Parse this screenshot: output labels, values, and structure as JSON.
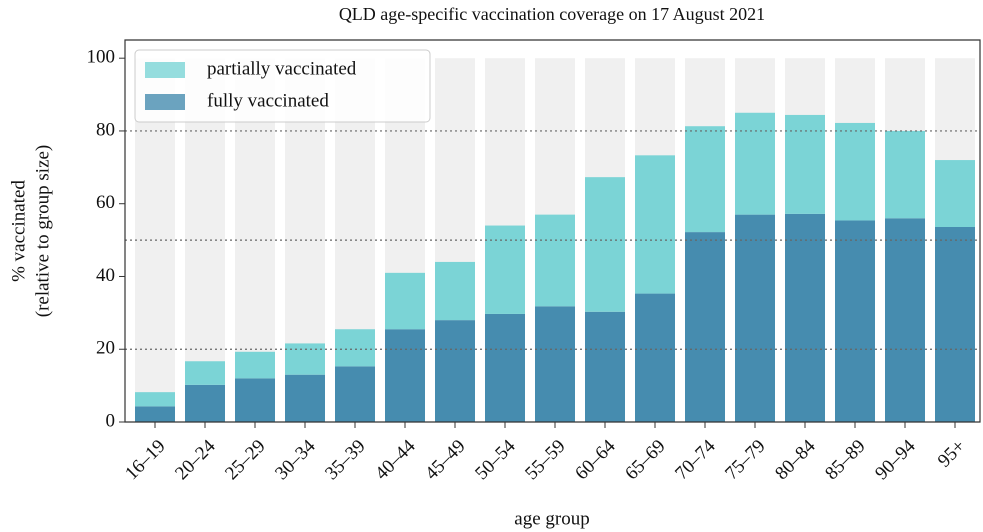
{
  "chart_data": {
    "type": "stacked_bar",
    "title": "QLD age-specific vaccination coverage on 17 August 2021",
    "x_label": "age group",
    "y_label": [
      "% vaccinated",
      "(relative to group size)"
    ],
    "categories": [
      "16–19",
      "20–24",
      "25–29",
      "30–34",
      "35–39",
      "40–44",
      "45–49",
      "50–54",
      "55–59",
      "60–64",
      "65–69",
      "70–74",
      "75–79",
      "80–84",
      "85–89",
      "90–94",
      "95+"
    ],
    "series": [
      {
        "name": "fully vaccinated",
        "color": "#468caf",
        "values": [
          4.3,
          10.2,
          12.0,
          13.0,
          15.3,
          25.5,
          28.0,
          29.7,
          31.8,
          30.3,
          35.3,
          52.2,
          57.0,
          57.2,
          55.4,
          56.0,
          53.6
        ]
      },
      {
        "name": "partially vaccinated",
        "color": "#7bd4d6",
        "values": [
          3.9,
          6.5,
          7.3,
          8.6,
          10.2,
          15.5,
          16.0,
          24.3,
          25.2,
          37.0,
          38.0,
          29.1,
          28.0,
          27.2,
          26.8,
          24.0,
          18.4
        ]
      }
    ],
    "background_bar_color": "#f0f0f0",
    "reference_lines": [
      20,
      50,
      80
    ],
    "ylim": [
      0,
      105
    ],
    "yticks": [
      0,
      20,
      40,
      60,
      80,
      100
    ],
    "legend": "upper left"
  }
}
